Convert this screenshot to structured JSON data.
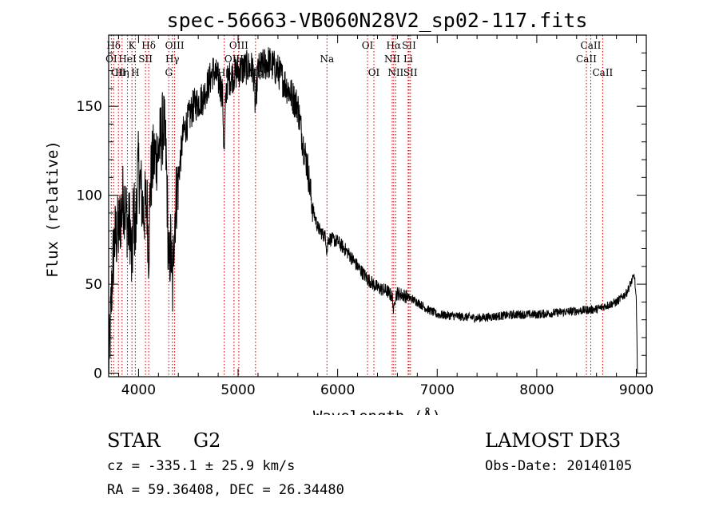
{
  "chart_data": {
    "type": "line",
    "title": "spec-56663-VB060N28V2_sp02-117.fits",
    "xlabel": "Wavelength (Å)",
    "ylabel": "Flux (relative)",
    "xlim": [
      3700,
      9100
    ],
    "ylim": [
      -2,
      190
    ],
    "x_ticks": [
      4000,
      5000,
      6000,
      7000,
      8000,
      9000
    ],
    "y_ticks": [
      0,
      50,
      100,
      150
    ],
    "grid": false,
    "line_color": "#000000",
    "marker_color": "#c00000",
    "series_anchors": {
      "wavelength": [
        3700,
        3720,
        3740,
        3760,
        3800,
        3850,
        3900,
        3950,
        4000,
        4050,
        4100,
        4150,
        4200,
        4250,
        4300,
        4340,
        4380,
        4450,
        4550,
        4650,
        4750,
        4800,
        4860,
        4900,
        5000,
        5100,
        5200,
        5300,
        5400,
        5500,
        5600,
        5650,
        5700,
        5730,
        5760,
        5800,
        5850,
        5900,
        5950,
        6000,
        6100,
        6200,
        6300,
        6400,
        6500,
        6563,
        6600,
        6700,
        6800,
        6900,
        7000,
        7200,
        7400,
        7600,
        7800,
        8000,
        8200,
        8400,
        8600,
        8800,
        8900,
        8980,
        9000,
        9010
      ],
      "flux": [
        0,
        30,
        60,
        75,
        80,
        100,
        80,
        110,
        115,
        90,
        100,
        120,
        125,
        140,
        110,
        70,
        100,
        135,
        150,
        155,
        170,
        165,
        155,
        165,
        170,
        172,
        170,
        175,
        170,
        160,
        150,
        130,
        115,
        100,
        90,
        82,
        78,
        76,
        75,
        74,
        68,
        60,
        53,
        48,
        46,
        42,
        45,
        43,
        40,
        36,
        33,
        32,
        31,
        32,
        33,
        33,
        34,
        35,
        36,
        40,
        45,
        55,
        40,
        0
      ]
    },
    "line_markers": [
      {
        "label": "Hδ",
        "wavelength": 3750,
        "row": 0
      },
      {
        "label": "K",
        "wavelength": 3934,
        "row": 0
      },
      {
        "label": "Hδ",
        "wavelength": 4102,
        "row": 0
      },
      {
        "label": "OIII",
        "wavelength": 4363,
        "row": 0
      },
      {
        "label": "OIII",
        "wavelength": 5007,
        "row": 0
      },
      {
        "label": "OI",
        "wavelength": 6300,
        "row": 0
      },
      {
        "label": "Hα",
        "wavelength": 6563,
        "row": 0
      },
      {
        "label": "SII",
        "wavelength": 6717,
        "row": 0
      },
      {
        "label": "CaII",
        "wavelength": 8542,
        "row": 0
      },
      {
        "label": "OI",
        "wavelength": 3727,
        "row": 1
      },
      {
        "label": "HeI",
        "wavelength": 3889,
        "row": 1
      },
      {
        "label": "SII",
        "wavelength": 4070,
        "row": 1
      },
      {
        "label": "Hγ",
        "wavelength": 4340,
        "row": 1
      },
      {
        "label": "OIII",
        "wavelength": 4959,
        "row": 1
      },
      {
        "label": "Na",
        "wavelength": 5893,
        "row": 1
      },
      {
        "label": "NII",
        "wavelength": 6548,
        "row": 1
      },
      {
        "label": "Li",
        "wavelength": 6708,
        "row": 1
      },
      {
        "label": "CaII",
        "wavelength": 8498,
        "row": 1
      },
      {
        "label": "CII",
        "wavelength": 3798,
        "row": 2
      },
      {
        "label": "Hη",
        "wavelength": 3835,
        "row": 2
      },
      {
        "label": "H",
        "wavelength": 3968,
        "row": 2
      },
      {
        "label": "G",
        "wavelength": 4304,
        "row": 2
      },
      {
        "label": "Hβ",
        "wavelength": 4861,
        "row": 2
      },
      {
        "label": "Mg",
        "wavelength": 5175,
        "row": 2
      },
      {
        "label": "OI",
        "wavelength": 6364,
        "row": 2
      },
      {
        "label": "NII",
        "wavelength": 6583,
        "row": 2
      },
      {
        "label": "SII",
        "wavelength": 6731,
        "row": 2
      },
      {
        "label": "CaII",
        "wavelength": 8662,
        "row": 2
      }
    ]
  },
  "info": {
    "object_class": "STAR",
    "subclass": "G2",
    "survey": "LAMOST DR3",
    "redshift": "cz = -335.1 ± 25.9 km/s",
    "obs_date": "Obs-Date: 20140105",
    "coords": "RA =  59.36408, DEC =  26.34480"
  }
}
